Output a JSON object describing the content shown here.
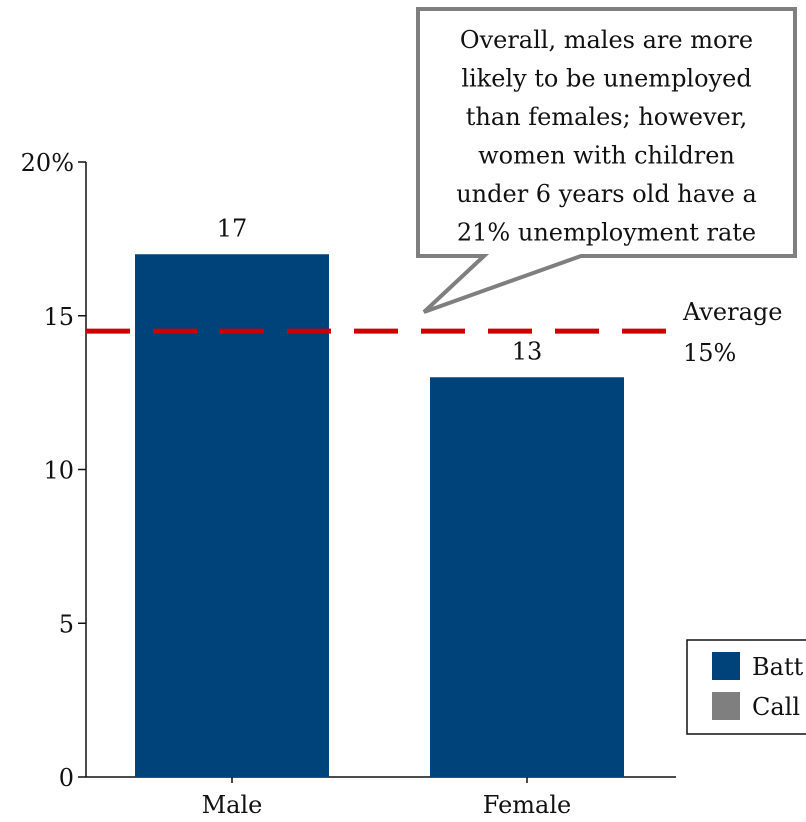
{
  "chart_data": {
    "type": "bar",
    "categories": [
      "Male",
      "Female"
    ],
    "values": [
      17,
      13
    ],
    "data_labels": [
      "17",
      "13"
    ],
    "ylim": [
      0,
      20
    ],
    "y_ticks": [
      {
        "value": 0,
        "label": "0"
      },
      {
        "value": 5,
        "label": "5"
      },
      {
        "value": 10,
        "label": "10"
      },
      {
        "value": 15,
        "label": "15"
      },
      {
        "value": 20,
        "label": "20%"
      }
    ],
    "reference_line": {
      "value": 14.5,
      "label_line1": "Average",
      "label_line2": "15%",
      "color": "#cc0000",
      "style": "dashed"
    },
    "callout": {
      "lines": [
        "Overall, males are more",
        "likely to be unemployed",
        "than females; however,",
        "women with children",
        "under 6 years old have a",
        "21% unemployment rate"
      ],
      "border_color": "#7f7f7f"
    },
    "legend": {
      "placement": "bottom-right",
      "items": [
        {
          "label": "Batt",
          "color": "#00427a"
        },
        {
          "label": "Call",
          "color": "#7f7f7f"
        }
      ]
    },
    "bar_color": "#00427a",
    "grid": false
  }
}
